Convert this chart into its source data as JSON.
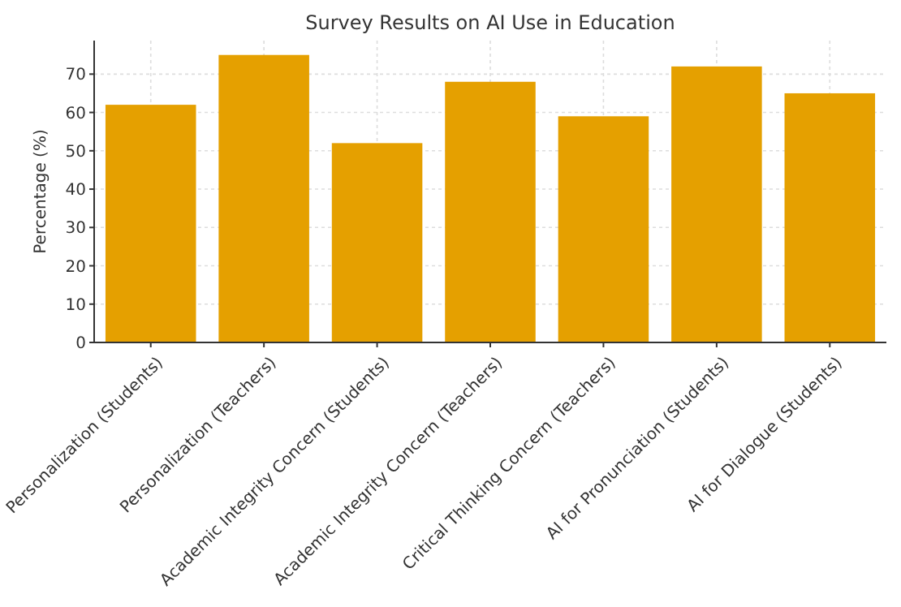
{
  "chart_data": {
    "type": "bar",
    "title": "Survey Results on AI Use in Education",
    "ylabel": "Percentage (%)",
    "categories": [
      "Personalization (Students)",
      "Personalization (Teachers)",
      "Academic Integrity Concern (Students)",
      "Academic Integrity Concern (Teachers)",
      "Critical Thinking Concern (Teachers)",
      "AI for Pronunciation (Students)",
      "AI for Dialogue (Students)"
    ],
    "values": [
      62,
      75,
      52,
      68,
      59,
      72,
      65
    ],
    "color": "#e5a000",
    "ylim": [
      0,
      78.75
    ],
    "yticks": [
      0,
      10,
      20,
      30,
      40,
      50,
      60,
      70
    ],
    "grid": true
  }
}
